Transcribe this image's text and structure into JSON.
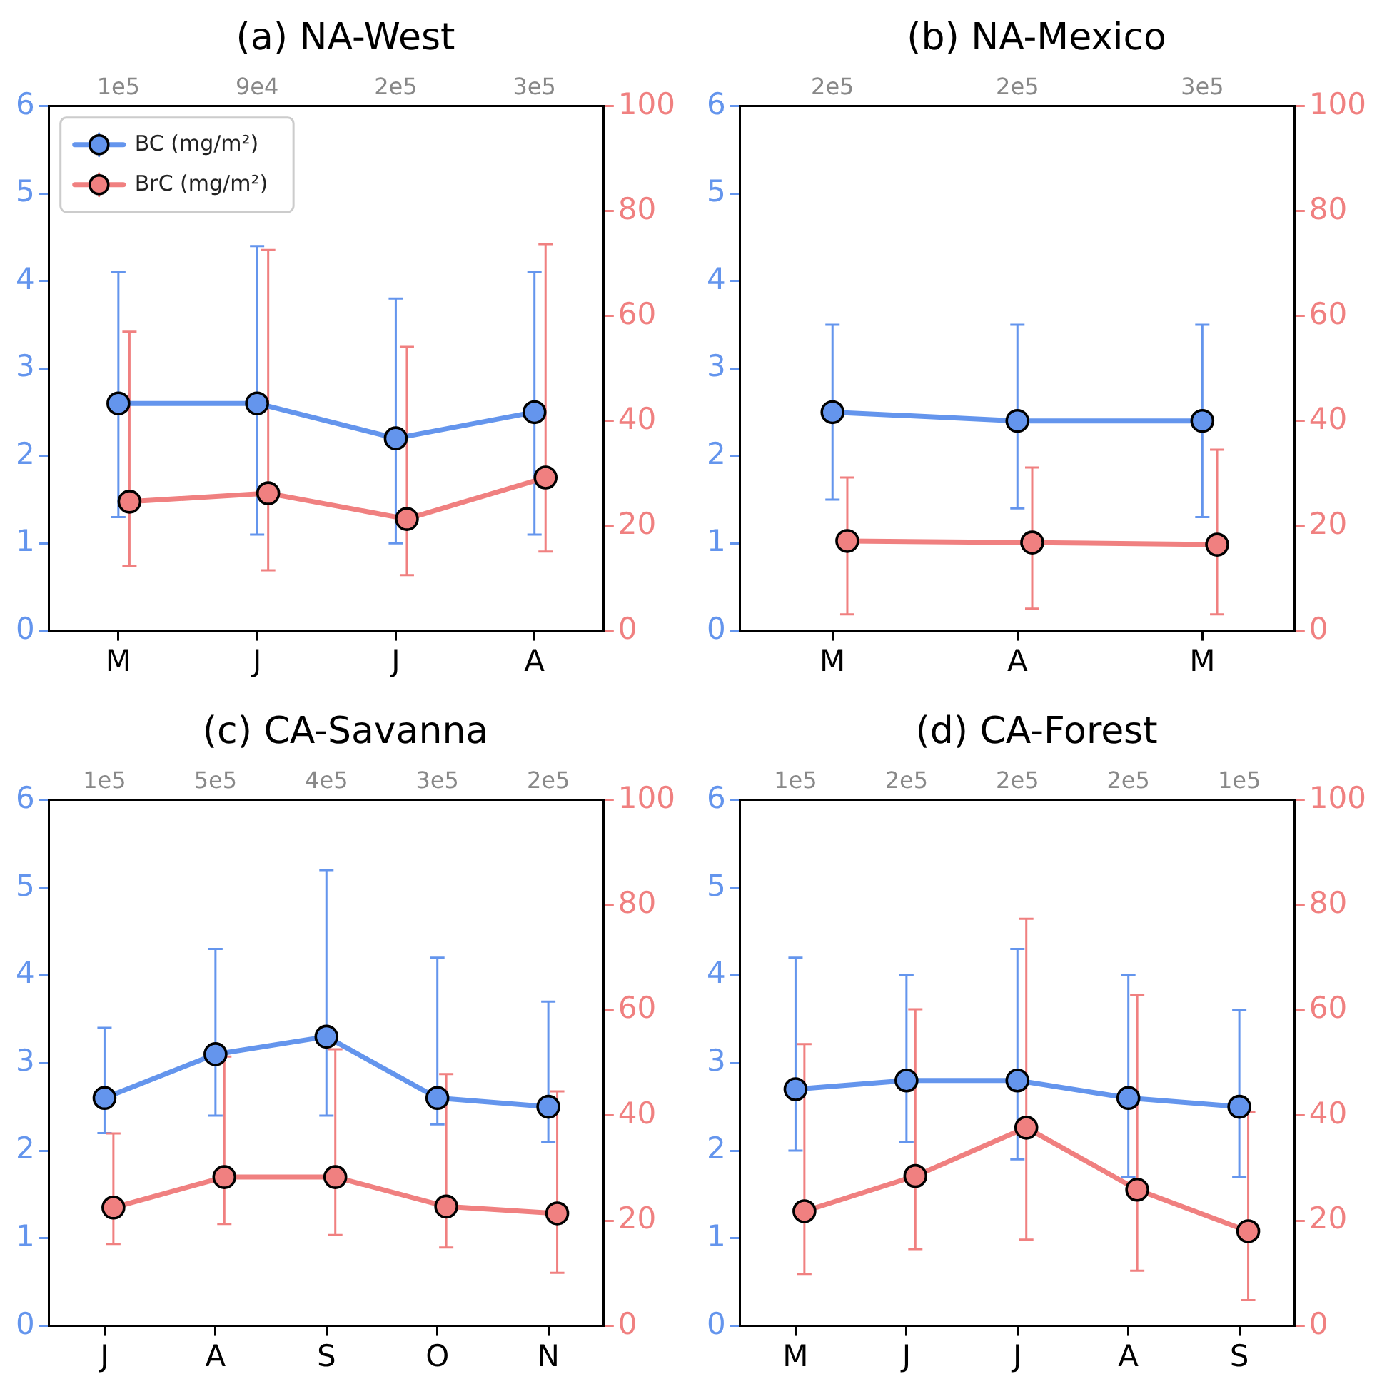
{
  "chart_data": [
    {
      "type": "line",
      "title": "(a) NA-West",
      "categories": [
        "M",
        "J",
        "J",
        "A"
      ],
      "annotations": [
        "1e5",
        "9e4",
        "2e5",
        "3e5"
      ],
      "ylim": [
        0,
        6
      ],
      "yticks": [
        0,
        1,
        2,
        3,
        4,
        5,
        6
      ],
      "y2lim": [
        0,
        100
      ],
      "y2ticks": [
        0,
        20,
        40,
        60,
        80,
        100
      ],
      "grid": false,
      "legend": "top left",
      "marker": "circle",
      "series": [
        {
          "name": "BC (mg/m²)",
          "color": "#6495ed",
          "values": [
            2.6,
            2.6,
            2.2,
            2.5
          ],
          "errors": [
            [
              1.3,
              4.1
            ],
            [
              1.1,
              4.4
            ],
            [
              1.0,
              3.8
            ],
            [
              1.1,
              4.1
            ]
          ]
        },
        {
          "name": "BrC (mg/m²)",
          "color": "#f08080",
          "axis": "y2",
          "values": [
            24.6,
            26.2,
            21.3,
            29.2
          ],
          "errors": [
            [
              12.3,
              57
            ],
            [
              11.5,
              72.6
            ],
            [
              10.6,
              54.1
            ],
            [
              15.1,
              73.7
            ]
          ]
        }
      ]
    },
    {
      "type": "line",
      "title": "(b) NA-Mexico",
      "categories": [
        "M",
        "A",
        "M"
      ],
      "annotations": [
        "2e5",
        "2e5",
        "3e5"
      ],
      "ylim": [
        0,
        6
      ],
      "yticks": [
        0,
        1,
        2,
        3,
        4,
        5,
        6
      ],
      "y2lim": [
        0,
        100
      ],
      "y2ticks": [
        0,
        20,
        40,
        60,
        80,
        100
      ],
      "grid": false,
      "marker": "circle",
      "series": [
        {
          "color": "#6495ed",
          "values": [
            2.5,
            2.4,
            2.4
          ],
          "errors": [
            [
              1.5,
              3.5
            ],
            [
              1.4,
              3.5
            ],
            [
              1.3,
              3.5
            ]
          ]
        },
        {
          "color": "#f08080",
          "axis": "y2",
          "values": [
            17.1,
            16.8,
            16.4
          ],
          "errors": [
            [
              3.1,
              29.2
            ],
            [
              4.2,
              31.1
            ],
            [
              3.1,
              34.5
            ]
          ]
        }
      ]
    },
    {
      "type": "line",
      "title": "(c) CA-Savanna",
      "categories": [
        "J",
        "A",
        "S",
        "O",
        "N"
      ],
      "annotations": [
        "1e5",
        "5e5",
        "4e5",
        "3e5",
        "2e5"
      ],
      "ylim": [
        0,
        6
      ],
      "yticks": [
        0,
        1,
        2,
        3,
        4,
        5,
        6
      ],
      "y2lim": [
        0,
        100
      ],
      "y2ticks": [
        0,
        20,
        40,
        60,
        80,
        100
      ],
      "grid": false,
      "marker": "circle",
      "series": [
        {
          "color": "#6495ed",
          "values": [
            2.6,
            3.1,
            3.3,
            2.6,
            2.5
          ],
          "errors": [
            [
              2.2,
              3.4
            ],
            [
              2.4,
              4.3
            ],
            [
              2.4,
              5.2
            ],
            [
              2.3,
              4.2
            ],
            [
              2.1,
              3.7
            ]
          ]
        },
        {
          "color": "#f08080",
          "axis": "y2",
          "values": [
            22.5,
            28.3,
            28.3,
            22.7,
            21.4
          ],
          "errors": [
            [
              15.6,
              36.6
            ],
            [
              19.4,
              51.2
            ],
            [
              17.3,
              52.6
            ],
            [
              14.9,
              47.9
            ],
            [
              10.1,
              44.6
            ]
          ]
        }
      ]
    },
    {
      "type": "line",
      "title": "(d) CA-Forest",
      "categories": [
        "M",
        "J",
        "J",
        "A",
        "S"
      ],
      "annotations": [
        "1e5",
        "2e5",
        "2e5",
        "2e5",
        "1e5"
      ],
      "ylim": [
        0,
        6
      ],
      "yticks": [
        0,
        1,
        2,
        3,
        4,
        5,
        6
      ],
      "y2lim": [
        0,
        100
      ],
      "y2ticks": [
        0,
        20,
        40,
        60,
        80,
        100
      ],
      "grid": false,
      "marker": "circle",
      "series": [
        {
          "color": "#6495ed",
          "values": [
            2.7,
            2.8,
            2.8,
            2.6,
            2.5
          ],
          "errors": [
            [
              2.0,
              4.2
            ],
            [
              2.1,
              4.0
            ],
            [
              1.9,
              4.3
            ],
            [
              1.7,
              4.0
            ],
            [
              1.7,
              3.6
            ]
          ]
        },
        {
          "color": "#f08080",
          "axis": "y2",
          "values": [
            21.8,
            28.5,
            37.7,
            25.9,
            18.0
          ],
          "errors": [
            [
              9.9,
              53.6
            ],
            [
              14.6,
              60.2
            ],
            [
              16.4,
              77.4
            ],
            [
              10.5,
              63.0
            ],
            [
              4.9,
              40.7
            ]
          ]
        }
      ]
    }
  ]
}
